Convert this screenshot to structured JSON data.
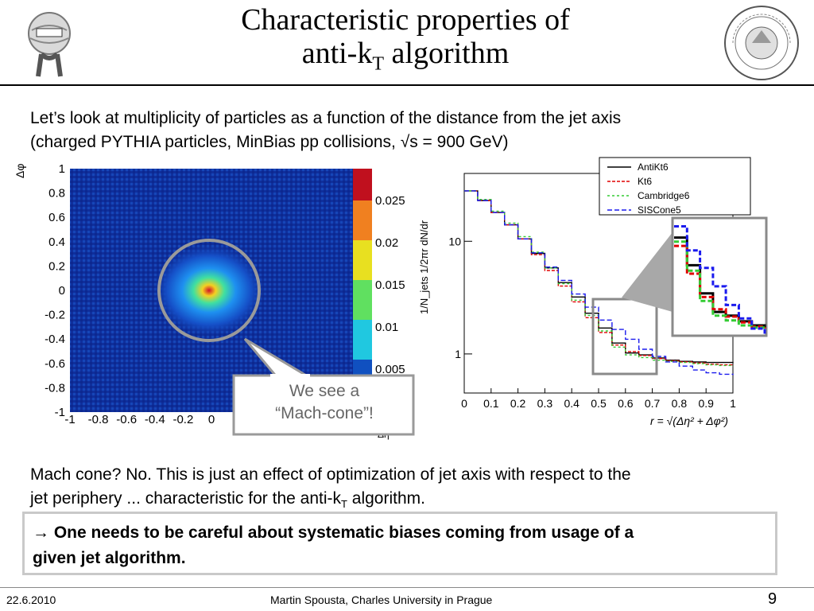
{
  "title": {
    "line1": "Characteristic properties of",
    "line2_a": "anti-k",
    "line2_sub": "T",
    "line2_b": " algorithm"
  },
  "intro": {
    "line1": "Let’s look at multiplicity of particles as a function of the distance from the jet axis",
    "line2": "(charged PYTHIA particles, MinBias pp collisions, √s = 900 GeV)"
  },
  "heatmap": {
    "ylabel": "Δφ",
    "xlabel": "Δη",
    "yticks": [
      "1",
      "0.8",
      "0.6",
      "0.4",
      "0.2",
      "0",
      "-0.2",
      "-0.4",
      "-0.6",
      "-0.8",
      "-1"
    ],
    "xticks": [
      "-1",
      "-0.8",
      "-0.6",
      "-0.4",
      "-0.2",
      "0"
    ],
    "colorbar_ticks": [
      "0.025",
      "0.02",
      "0.015",
      "0.01",
      "0.005"
    ],
    "callout": {
      "line1": "We see a",
      "line2": "“Mach-cone”!"
    }
  },
  "chart_data": {
    "type": "line",
    "ylabel": "1/N_jets 1/2πr dN/dr",
    "xlabel": "r = √(Δη² + Δφ²)",
    "xticks": [
      "0",
      "0.1",
      "0.2",
      "0.3",
      "0.4",
      "0.5",
      "0.6",
      "0.7",
      "0.8",
      "0.9",
      "1"
    ],
    "yticks": [
      "10",
      "1"
    ],
    "y_scale": "log",
    "xlim": [
      0,
      1
    ],
    "legend_position": "top-right",
    "x": [
      0.0,
      0.05,
      0.1,
      0.15,
      0.2,
      0.25,
      0.3,
      0.35,
      0.4,
      0.45,
      0.5,
      0.55,
      0.6,
      0.65,
      0.7,
      0.75,
      0.8,
      0.85,
      0.9,
      0.95,
      1.0
    ],
    "series": [
      {
        "name": "AntiKt6",
        "color": "#000000",
        "values": [
          28,
          23,
          18,
          14,
          10.5,
          7.8,
          5.8,
          4.3,
          3.2,
          2.3,
          1.7,
          1.25,
          1.02,
          0.98,
          0.92,
          0.88,
          0.86,
          0.85,
          0.84,
          0.84,
          0.83
        ]
      },
      {
        "name": "Kt6",
        "color": "#e00000",
        "values": [
          28,
          23,
          18,
          14,
          10.5,
          7.6,
          5.5,
          4.0,
          2.9,
          2.1,
          1.55,
          1.2,
          1.05,
          0.97,
          0.91,
          0.87,
          0.85,
          0.83,
          0.81,
          0.8,
          0.79
        ]
      },
      {
        "name": "Cambridge6",
        "color": "#33cc33",
        "values": [
          28,
          23.5,
          18.5,
          14.5,
          11,
          8,
          5.8,
          4.2,
          3.0,
          2.2,
          1.6,
          1.15,
          0.98,
          0.93,
          0.88,
          0.86,
          0.84,
          0.82,
          0.8,
          0.79,
          0.78
        ]
      },
      {
        "name": "SISCone5",
        "color": "#1a1aee",
        "values": [
          28,
          23,
          18,
          14,
          10.5,
          7.9,
          5.9,
          4.5,
          3.4,
          2.6,
          2.0,
          1.65,
          1.35,
          1.1,
          0.95,
          0.85,
          0.78,
          0.72,
          0.68,
          0.66,
          0.65
        ]
      }
    ]
  },
  "mach": {
    "line1": "Mach cone? No. This is just an effect of optimization of jet axis with respect to the",
    "line2_a": "jet periphery ... characteristic for the anti-k",
    "line2_sub": "T",
    "line2_b": " algorithm."
  },
  "conclusion": {
    "arrow": "→",
    "text1": "One needs to be careful about systematic biases coming from usage of a",
    "text2": "given jet algorithm."
  },
  "footer": {
    "date": "22.6.2010",
    "author": "Martin Spousta,  Charles University in Prague",
    "page": "9"
  }
}
